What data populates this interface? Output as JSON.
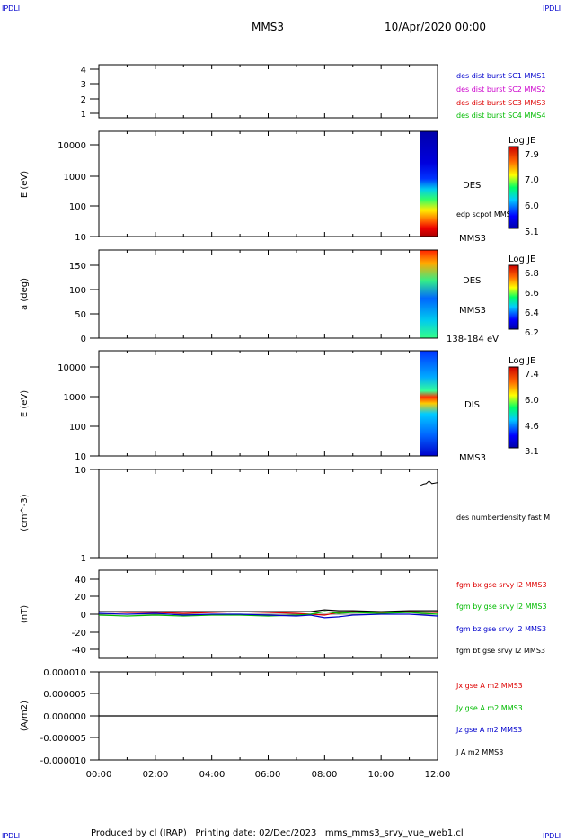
{
  "header": {
    "corner_tl": "IPDLI",
    "corner_tr": "IPDLI",
    "corner_bl": "IPDLI",
    "corner_br": "IPDLI",
    "spacecraft": "MMS3",
    "date": "10/Apr/2020 00:00"
  },
  "footer": {
    "text": "Produced by cl (IRAP)   Printing date: 02/Dec/2023   mms_mms3_srvy_vue_web1.cl"
  },
  "time_axis": {
    "ticks": [
      "00:00",
      "02:00",
      "04:00",
      "06:00",
      "08:00",
      "10:00",
      "12:00"
    ],
    "range_hours": [
      0,
      12
    ]
  },
  "colors": {
    "blue": "#0000cc",
    "magenta": "#cc00cc",
    "red": "#dd0000",
    "green": "#00bb00",
    "black": "#000000"
  },
  "panels": {
    "burst": {
      "y_ticks": [
        "1",
        "2",
        "3",
        "4"
      ],
      "y_range": [
        0.8,
        4.2
      ],
      "legend": [
        {
          "text": "des dist burst SC1 MMS1",
          "color": "#0000cc"
        },
        {
          "text": "des dist burst SC2 MMS2",
          "color": "#cc00cc"
        },
        {
          "text": "des dist burst SC3 MMS3",
          "color": "#dd0000"
        },
        {
          "text": "des dist burst SC4 MMS4",
          "color": "#00bb00"
        }
      ]
    },
    "des_energy": {
      "ylabel": "E (eV)",
      "y_ticks": [
        "10",
        "100",
        "1000",
        "10000"
      ],
      "y_log_range": [
        10,
        30000
      ],
      "label_species": "DES",
      "label_potential": "edp scpot MMS3",
      "label_sc": "MMS3",
      "colorbar": {
        "title": "Log JE",
        "ticks": [
          "7.9",
          "7.0",
          "6.0",
          "5.1"
        ]
      }
    },
    "des_pitch": {
      "ylabel": "a (deg)",
      "y_ticks": [
        "0",
        "50",
        "100",
        "150"
      ],
      "y_range": [
        0,
        180
      ],
      "label_species": "DES",
      "label_sc": "MMS3",
      "label_energy": "138-184 eV",
      "colorbar": {
        "title": "Log JE",
        "ticks": [
          "6.8",
          "6.6",
          "6.4",
          "6.2"
        ]
      }
    },
    "dis_energy": {
      "ylabel": "E (eV)",
      "y_ticks": [
        "10",
        "100",
        "1000",
        "10000"
      ],
      "y_log_range": [
        10,
        30000
      ],
      "label_species": "DIS",
      "label_sc": "MMS3",
      "colorbar": {
        "title": "Log JE",
        "ticks": [
          "7.4",
          "6.0",
          "4.6",
          "3.1"
        ]
      }
    },
    "density": {
      "ylabel": "(cm^-3)",
      "y_ticks": [
        "1",
        "10"
      ],
      "y_log_range": [
        1,
        10
      ],
      "legend": "des numberdensity fast M"
    },
    "bfield": {
      "ylabel": "(nT)",
      "y_ticks": [
        "-40",
        "-20",
        "0",
        "20",
        "40"
      ],
      "y_range": [
        -50,
        50
      ],
      "legend": [
        {
          "text": "fgm bx gse srvy l2 MMS3",
          "color": "#dd0000"
        },
        {
          "text": "fgm by gse srvy l2 MMS3",
          "color": "#00bb00"
        },
        {
          "text": "fgm bz gse srvy l2 MMS3",
          "color": "#0000cc"
        },
        {
          "text": "fgm bt gse srvy l2 MMS3",
          "color": "#000000"
        }
      ]
    },
    "current": {
      "ylabel": "(A/m2)",
      "y_ticks": [
        "-0.000010",
        "-0.000005",
        "0.000000",
        "0.000005",
        "0.000010"
      ],
      "y_range": [
        -1e-05,
        1e-05
      ],
      "legend": [
        {
          "text": "Jx gse A m2 MMS3",
          "color": "#dd0000"
        },
        {
          "text": "Jy gse A m2 MMS3",
          "color": "#00bb00"
        },
        {
          "text": "Jz gse A m2 MMS3",
          "color": "#0000cc"
        },
        {
          "text": "J A m2 MMS3",
          "color": "#000000"
        }
      ]
    }
  },
  "chart_data": [
    {
      "type": "line",
      "panel": "burst",
      "series": [],
      "ylim": [
        0.8,
        4.2
      ]
    },
    {
      "type": "heatmap",
      "panel": "des_energy",
      "xlim": [
        0,
        12
      ],
      "data_interval_hours": [
        11.4,
        12.0
      ],
      "ylog": true,
      "ylim": [
        10,
        30000
      ],
      "color_scale": "Log JE",
      "clim": [
        5.1,
        7.9
      ]
    },
    {
      "type": "heatmap",
      "panel": "des_pitch",
      "xlim": [
        0,
        12
      ],
      "data_interval_hours": [
        11.4,
        12.0
      ],
      "ylim": [
        0,
        180
      ],
      "color_scale": "Log JE",
      "clim": [
        6.2,
        6.8
      ]
    },
    {
      "type": "heatmap",
      "panel": "dis_energy",
      "xlim": [
        0,
        12
      ],
      "data_interval_hours": [
        11.4,
        12.0
      ],
      "ylog": true,
      "ylim": [
        10,
        30000
      ],
      "color_scale": "Log JE",
      "clim": [
        3.1,
        7.4
      ]
    },
    {
      "type": "line",
      "panel": "density",
      "x": [
        11.4,
        11.5,
        11.6,
        11.7,
        11.8,
        11.9,
        12.0
      ],
      "y": [
        6.6,
        6.8,
        6.9,
        7.4,
        6.9,
        7.0,
        7.1
      ],
      "ylog": true,
      "ylim": [
        1,
        10
      ]
    },
    {
      "type": "line",
      "panel": "bfield",
      "x": [
        0,
        1,
        2,
        3,
        4,
        5,
        6,
        7,
        7.5,
        8,
        8.5,
        9,
        10,
        11,
        12
      ],
      "series": [
        {
          "name": "fgm bx gse srvy l2 MMS3",
          "values": [
            3,
            2,
            2,
            1,
            2,
            3,
            2,
            1,
            0,
            -1,
            2,
            3,
            2,
            3,
            2
          ]
        },
        {
          "name": "fgm by gse srvy l2 MMS3",
          "values": [
            -1,
            -2,
            -1,
            -2,
            -1,
            -1,
            -2,
            -1,
            0,
            3,
            1,
            2,
            1,
            2,
            0
          ]
        },
        {
          "name": "fgm bz gse srvy l2 MMS3",
          "values": [
            1,
            0,
            1,
            -1,
            0,
            0,
            -1,
            -2,
            -1,
            -4,
            -3,
            -1,
            0,
            0,
            -2
          ]
        },
        {
          "name": "fgm bt gse srvy l2 MMS3",
          "values": [
            3,
            3,
            3,
            3,
            3,
            3,
            3,
            3,
            3,
            5,
            4,
            4,
            3,
            4,
            4
          ]
        }
      ],
      "ylim": [
        -50,
        50
      ]
    },
    {
      "type": "line",
      "panel": "current",
      "x": [
        0,
        12
      ],
      "y": [
        0,
        0
      ],
      "ylim": [
        -1e-05,
        1e-05
      ]
    }
  ]
}
